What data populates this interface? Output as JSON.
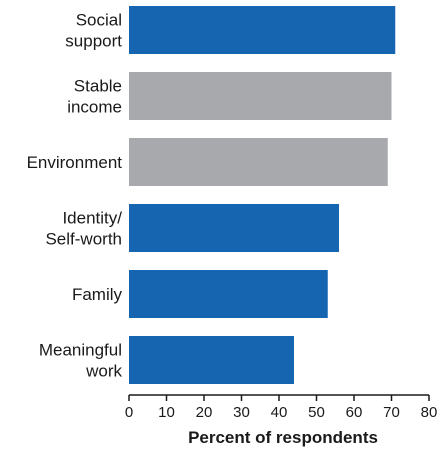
{
  "chart_data": {
    "type": "bar",
    "orientation": "horizontal",
    "title": "",
    "xlabel": "Percent of respondents",
    "ylabel": "",
    "xlim": [
      0,
      80
    ],
    "xticks": [
      "0",
      "10",
      "20",
      "30",
      "40",
      "50",
      "60",
      "70",
      "80"
    ],
    "grid": false,
    "categories": [
      [
        "Social",
        "support"
      ],
      [
        "Stable",
        "income"
      ],
      [
        "Environment"
      ],
      [
        "Identity/",
        "Self-worth"
      ],
      [
        "Family"
      ],
      [
        "Meaningful",
        "work"
      ]
    ],
    "values": [
      71,
      70,
      69,
      56,
      53,
      44
    ],
    "bar_colors": [
      "#1565b0",
      "#a7a9ac",
      "#a7a9ac",
      "#1565b0",
      "#1565b0",
      "#1565b0"
    ]
  }
}
